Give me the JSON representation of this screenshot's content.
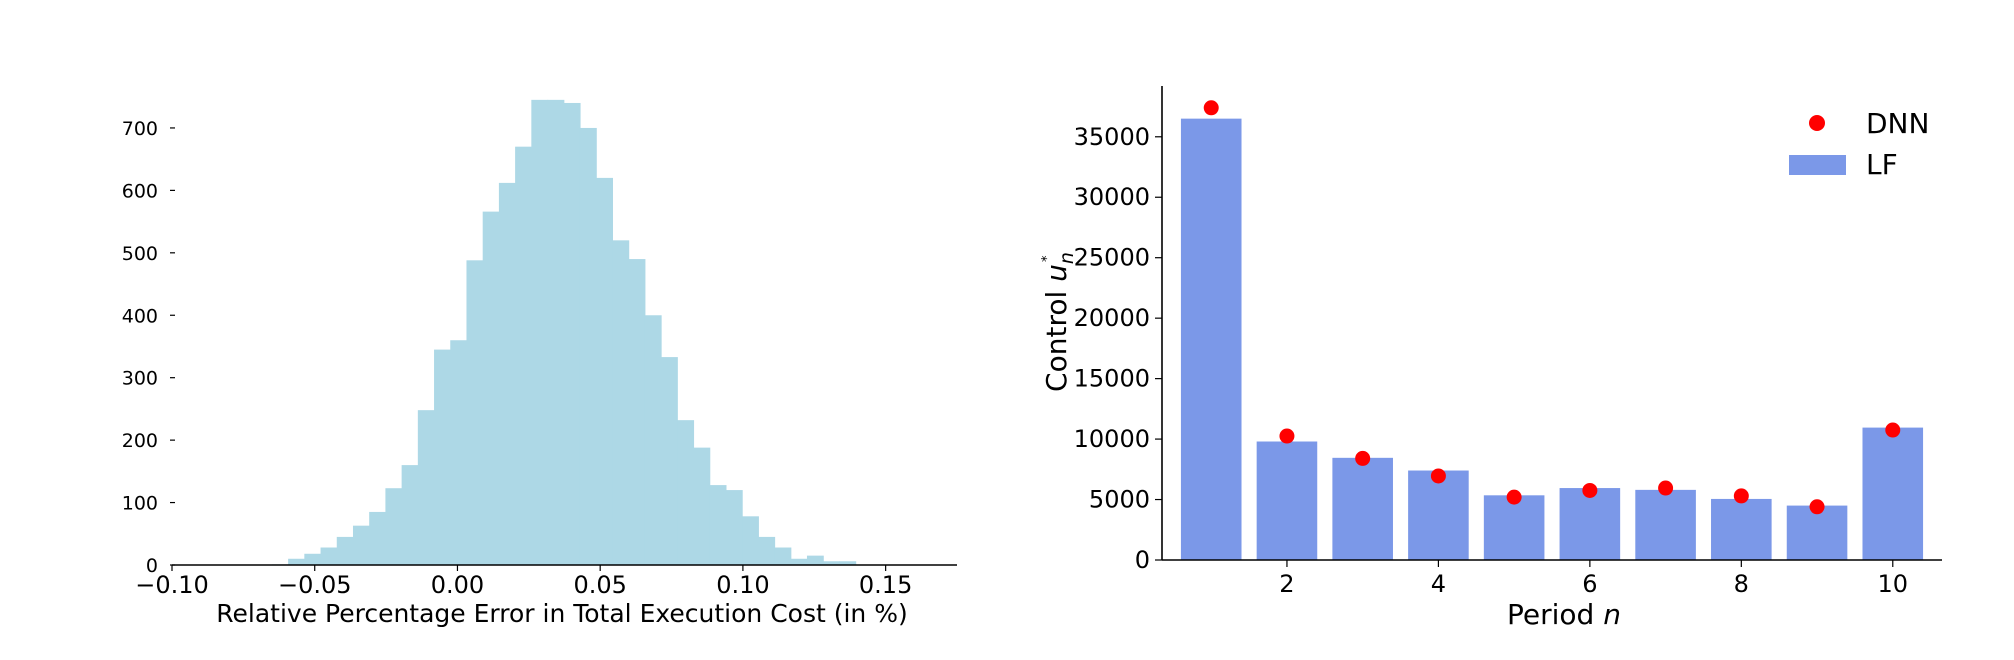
{
  "chart_data": [
    {
      "type": "bar",
      "subtype": "histogram",
      "xlabel": "Relative Percentage Error in Total Execution Cost (in %)",
      "ylabel": "",
      "xlim": [
        -0.1,
        0.175
      ],
      "ylim": [
        0,
        780
      ],
      "xticks": [
        -0.1,
        -0.05,
        0.0,
        0.05,
        0.1,
        0.15
      ],
      "xtick_labels": [
        "−0.10",
        "−0.05",
        "0.00",
        "0.05",
        "0.10",
        "0.15"
      ],
      "yticks": [
        0,
        100,
        200,
        300,
        400,
        500,
        600,
        700
      ],
      "ytick_labels": [
        "0",
        "100",
        "200",
        "300",
        "400",
        "500",
        "600",
        "700"
      ],
      "bin_start": -0.065,
      "bin_width": 0.00568,
      "values": [
        1,
        10,
        18,
        28,
        45,
        63,
        85,
        123,
        160,
        248,
        345,
        360,
        488,
        566,
        612,
        670,
        745,
        745,
        740,
        700,
        620,
        520,
        490,
        400,
        333,
        232,
        188,
        128,
        120,
        78,
        45,
        28,
        10,
        15,
        6,
        6
      ],
      "color": "#add8e6",
      "grid": false
    },
    {
      "type": "bar",
      "xlabel_parts": [
        "Period ",
        "n"
      ],
      "ylabel_parts": [
        "Control ",
        "u",
        "n",
        "*"
      ],
      "categories": [
        1,
        2,
        3,
        4,
        5,
        6,
        7,
        8,
        9,
        10
      ],
      "xticks": [
        2,
        4,
        6,
        8,
        10
      ],
      "xtick_labels": [
        "2",
        "4",
        "6",
        "8",
        "10"
      ],
      "yticks": [
        0,
        5000,
        10000,
        15000,
        20000,
        25000,
        30000,
        35000
      ],
      "ytick_labels": [
        "0",
        "5000",
        "10000",
        "15000",
        "20000",
        "25000",
        "30000",
        "35000"
      ],
      "xlim": [
        0.35,
        10.65
      ],
      "ylim": [
        0,
        39200
      ],
      "grid": false,
      "legend_position": "top-right",
      "series": [
        {
          "name": "LF",
          "type": "bar",
          "color": "#7b98e8",
          "values": [
            36500,
            9800,
            8450,
            7400,
            5350,
            5950,
            5800,
            5050,
            4500,
            10950
          ]
        },
        {
          "name": "DNN",
          "type": "scatter",
          "color": "#ff0000",
          "values": [
            37400,
            10250,
            8400,
            6950,
            5200,
            5750,
            5950,
            5300,
            4400,
            10750
          ]
        }
      ]
    }
  ]
}
